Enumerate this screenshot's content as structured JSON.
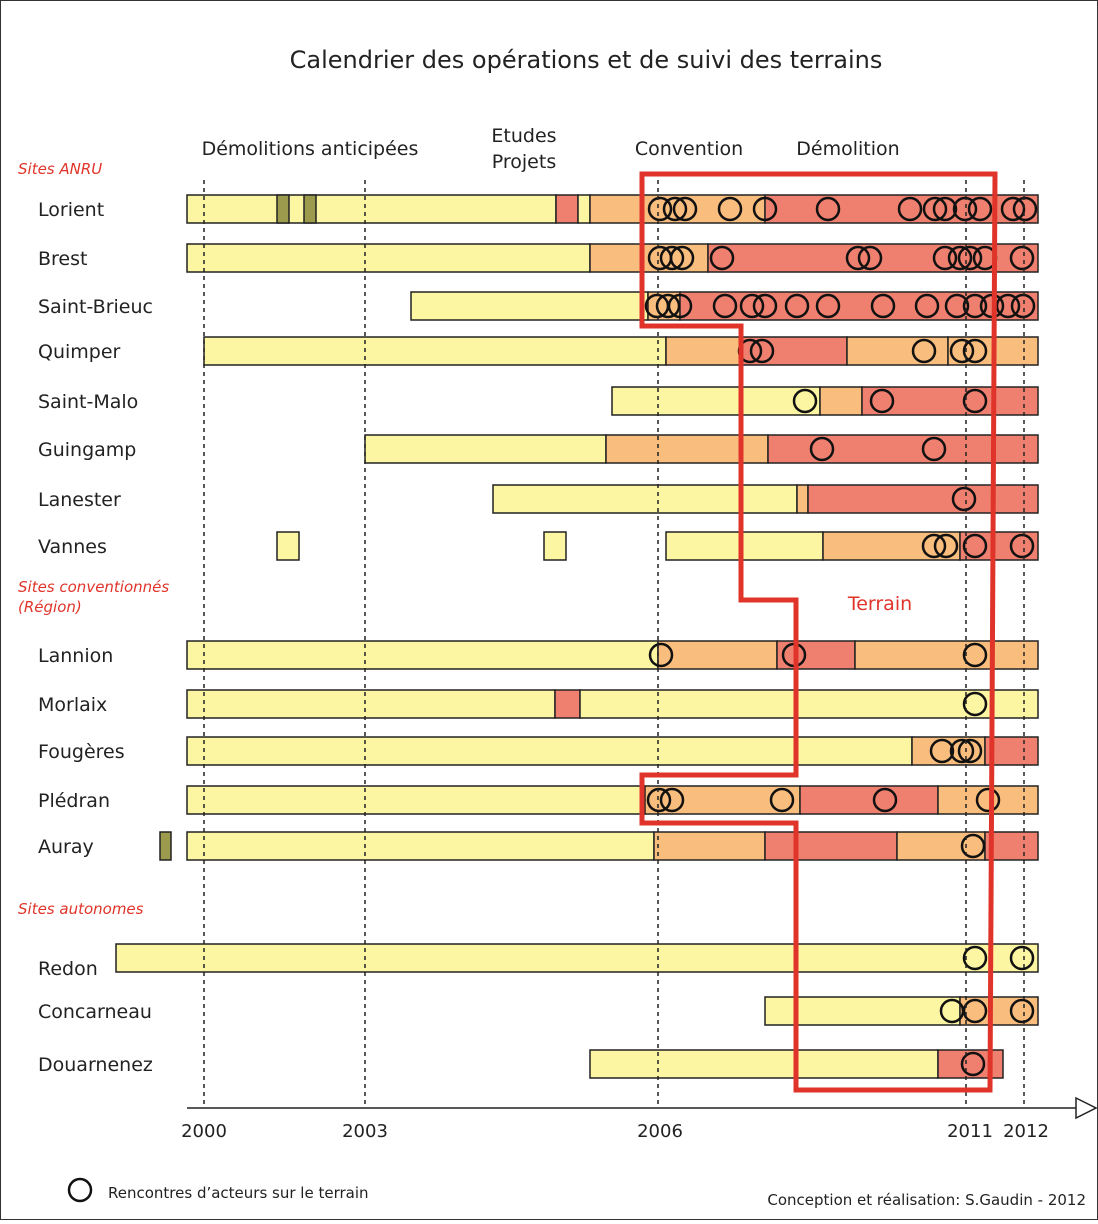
{
  "title": "Calendrier des opérations et de suivi des terrains",
  "phases": [
    "Démolitions anticipées",
    "Etudes",
    "Projets",
    "Convention",
    "Démolition"
  ],
  "sections": {
    "anru": "Sites ANRU",
    "conv1": "Sites conventionnés",
    "conv2": "(Région)",
    "auto": "Sites autonomes"
  },
  "sites": [
    "Lorient",
    "Brest",
    "Saint-Brieuc",
    "Quimper",
    "Saint-Malo",
    "Guingamp",
    "Lanester",
    "Vannes",
    "Lannion",
    "Morlaix",
    "Fougères",
    "Plédran",
    "Auray",
    "Redon",
    "Concarneau",
    "Douarnenez"
  ],
  "years": [
    "2000",
    "2003",
    "2006",
    "2011",
    "2012"
  ],
  "terrain": "Terrain",
  "legend": "Rencontres d’acteurs sur le terrain",
  "credit": "Conception et réalisation: S.Gaudin - 2012"
}
